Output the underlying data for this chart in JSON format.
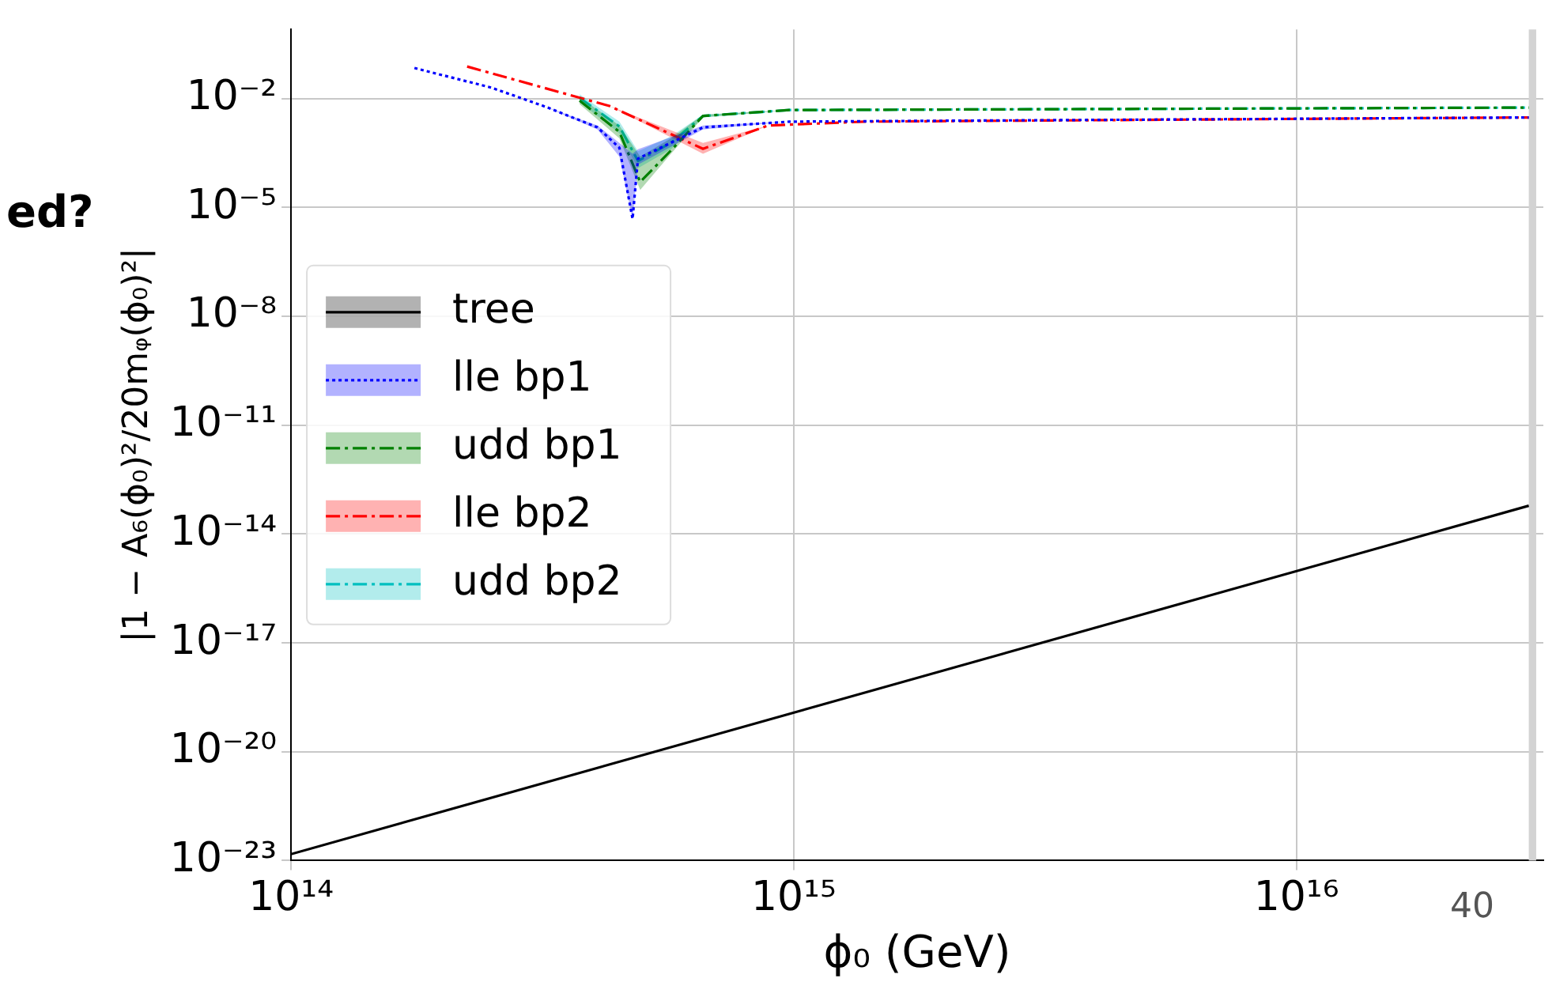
{
  "chart_data": {
    "type": "line",
    "xlabel": "ϕ₀ (GeV)",
    "ylabel": "|1 − A₆(ϕ₀)²/20mᵩ(ϕ₀)²|",
    "log": "xy",
    "xlim": [
      100000000000000.0,
      3.1e+16
    ],
    "xticks": [
      {
        "value": 100000000000000.0,
        "label": "10¹⁴"
      },
      {
        "value": 1000000000000000.0,
        "label": "10¹⁵"
      },
      {
        "value": 1e+16,
        "label": "10¹⁶"
      }
    ],
    "ylim": [
      1e-23,
      0.8
    ],
    "yticks": [
      {
        "value": 1e-23,
        "label": "10⁻²³"
      },
      {
        "value": 1e-20,
        "label": "10⁻²⁰"
      },
      {
        "value": 1e-17,
        "label": "10⁻¹⁷"
      },
      {
        "value": 1e-14,
        "label": "10⁻¹⁴"
      },
      {
        "value": 1e-11,
        "label": "10⁻¹¹"
      },
      {
        "value": 1e-08,
        "label": "10⁻⁸"
      },
      {
        "value": 1e-05,
        "label": "10⁻⁵"
      },
      {
        "value": 0.01,
        "label": "10⁻²"
      }
    ],
    "grid": true,
    "legend": "center left",
    "bands": [
      {
        "axis": "x",
        "from": 2.9e+16,
        "to": 3e+16,
        "color": "#d3d3d3"
      }
    ],
    "annotations": [
      "ed?",
      "40"
    ],
    "series": [
      {
        "name": "tree",
        "color": "#000000",
        "line_style": "solid",
        "x": [
          100000000000000.0,
          2.9e+16
        ],
        "values": [
          1.5e-23,
          6e-14
        ]
      },
      {
        "name": "lle bp1",
        "color": "#0000ff",
        "line_style": "dotted",
        "x": [
          176000000000000.0,
          250000000000000.0,
          320000000000000.0,
          407000000000000.0,
          450000000000000.0,
          478000000000000.0,
          490000000000000.0,
          660000000000000.0,
          980000000000000.0,
          2.9e+16
        ],
        "values": [
          0.069,
          0.02,
          0.006,
          0.0016,
          0.00044,
          4.8e-06,
          0.00022,
          0.0016,
          0.0023,
          0.003
        ],
        "lower": [
          0.069,
          0.02,
          0.006,
          0.0014,
          0.00025,
          4.8e-06,
          0.00015,
          0.0014,
          0.0023,
          0.003
        ],
        "upper": [
          0.069,
          0.02,
          0.006,
          0.0018,
          0.0006,
          0.0003,
          0.0004,
          0.0018,
          0.0023,
          0.003
        ]
      },
      {
        "name": "udd bp1",
        "color": "#008000",
        "line_style": "dashed",
        "x": [
          375000000000000.0,
          450000000000000.0,
          495000000000000.0,
          570000000000000.0,
          660000000000000.0,
          980000000000000.0,
          2.9e+16
        ],
        "values": [
          0.0087,
          0.0012,
          5e-05,
          0.00037,
          0.0033,
          0.0048,
          0.0056
        ],
        "lower": [
          0.007,
          0.0008,
          3e-05,
          0.0003,
          0.003,
          0.0048,
          0.0056
        ],
        "upper": [
          0.011,
          0.0018,
          0.00025,
          0.0008,
          0.0036,
          0.0048,
          0.0056
        ]
      },
      {
        "name": "lle bp2",
        "color": "#ff0000",
        "line_style": "dashed",
        "x": [
          224000000000000.0,
          430000000000000.0,
          660000000000000.0,
          890000000000000.0,
          1380000000000000.0,
          2.9e+16
        ],
        "values": [
          0.076,
          0.0062,
          0.00041,
          0.0018,
          0.0023,
          0.003
        ],
        "lower": [
          0.076,
          0.0062,
          0.0003,
          0.0018,
          0.0023,
          0.003
        ],
        "upper": [
          0.076,
          0.0062,
          0.0006,
          0.0018,
          0.0023,
          0.003
        ]
      },
      {
        "name": "udd bp2",
        "color": "#00bfbf",
        "line_style": "dashed",
        "x": [
          375000000000000.0,
          450000000000000.0,
          490000000000000.0,
          570000000000000.0,
          660000000000000.0,
          980000000000000.0,
          2.9e+16
        ],
        "values": [
          0.0105,
          0.0017,
          0.00019,
          0.0006,
          0.0033,
          0.0048,
          0.0056
        ],
        "lower": [
          0.008,
          0.0011,
          0.00012,
          0.0004,
          0.003,
          0.0048,
          0.0056
        ],
        "upper": [
          0.013,
          0.0023,
          0.00035,
          0.0009,
          0.0036,
          0.0048,
          0.0056
        ]
      }
    ]
  }
}
